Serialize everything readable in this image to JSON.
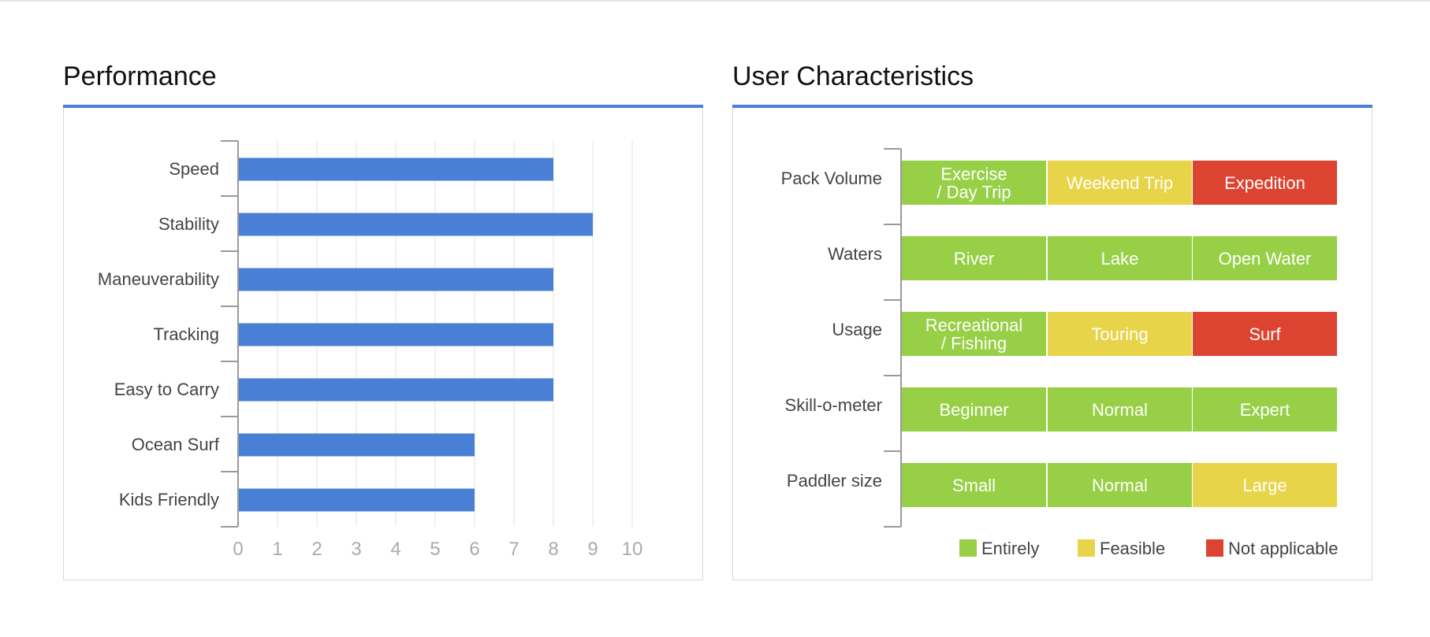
{
  "performance": {
    "title": "Performance",
    "chart_data": {
      "type": "bar",
      "orientation": "horizontal",
      "categories": [
        "Speed",
        "Stability",
        "Maneuverability",
        "Tracking",
        "Easy to Carry",
        "Ocean Surf",
        "Kids Friendly"
      ],
      "values": [
        8,
        9,
        8,
        8,
        8,
        6,
        6
      ],
      "x_ticks": [
        "0",
        "1",
        "2",
        "3",
        "4",
        "5",
        "6",
        "7",
        "8",
        "9",
        "10"
      ],
      "xlim": [
        0,
        10
      ],
      "grid": true,
      "bar_color": "#4a7fd6"
    }
  },
  "characteristics": {
    "title": "User Characteristics",
    "chart_data": {
      "type": "table",
      "rows": [
        {
          "label": "Pack Volume",
          "cells": [
            {
              "lines": [
                "Exercise",
                "/ Day Trip"
              ],
              "status": "entirely"
            },
            {
              "lines": [
                "Weekend Trip"
              ],
              "status": "feasible"
            },
            {
              "lines": [
                "Expedition"
              ],
              "status": "not_applicable"
            }
          ]
        },
        {
          "label": "Waters",
          "cells": [
            {
              "lines": [
                "River"
              ],
              "status": "entirely"
            },
            {
              "lines": [
                "Lake"
              ],
              "status": "entirely"
            },
            {
              "lines": [
                "Open Water"
              ],
              "status": "entirely"
            }
          ]
        },
        {
          "label": "Usage",
          "cells": [
            {
              "lines": [
                "Recreational",
                "/ Fishing"
              ],
              "status": "entirely"
            },
            {
              "lines": [
                "Touring"
              ],
              "status": "feasible"
            },
            {
              "lines": [
                "Surf"
              ],
              "status": "not_applicable"
            }
          ]
        },
        {
          "label": "Skill-o-meter",
          "cells": [
            {
              "lines": [
                "Beginner"
              ],
              "status": "entirely"
            },
            {
              "lines": [
                "Normal"
              ],
              "status": "entirely"
            },
            {
              "lines": [
                "Expert"
              ],
              "status": "entirely"
            }
          ]
        },
        {
          "label": "Paddler size",
          "cells": [
            {
              "lines": [
                "Small"
              ],
              "status": "entirely"
            },
            {
              "lines": [
                "Normal"
              ],
              "status": "entirely"
            },
            {
              "lines": [
                "Large"
              ],
              "status": "feasible"
            }
          ]
        }
      ],
      "legend_position": "bottom-right",
      "legend": [
        {
          "key": "entirely",
          "label": "Entirely"
        },
        {
          "key": "feasible",
          "label": "Feasible"
        },
        {
          "key": "not_applicable",
          "label": "Not applicable"
        }
      ],
      "colors": {
        "entirely": "#97d046",
        "feasible": "#e8d448",
        "not_applicable": "#dc4330"
      }
    }
  }
}
